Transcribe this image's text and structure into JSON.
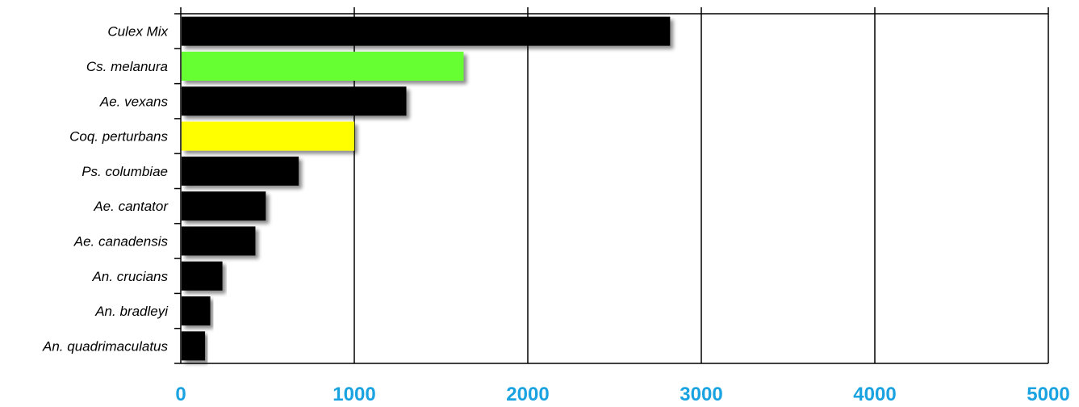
{
  "chart_data": {
    "type": "bar",
    "orientation": "horizontal",
    "categories": [
      "Culex Mix",
      "Cs. melanura",
      "Ae. vexans",
      "Coq. perturbans",
      "Ps. columbiae",
      "Ae. cantator",
      "Ae. canadensis",
      "An. crucians",
      "An. bradleyi",
      "An. quadrimaculatus"
    ],
    "values": [
      2820,
      1630,
      1300,
      1000,
      680,
      490,
      430,
      240,
      170,
      140
    ],
    "bar_colors": [
      "#000000",
      "#66ff33",
      "#000000",
      "#ffff00",
      "#000000",
      "#000000",
      "#000000",
      "#000000",
      "#000000",
      "#000000"
    ],
    "xlim": [
      0,
      5000
    ],
    "x_ticks": [
      0,
      1000,
      2000,
      3000,
      4000,
      5000
    ],
    "x_tick_labels": [
      "0",
      "1000",
      "2000",
      "3000",
      "4000",
      "5000"
    ],
    "tick_label_color": "#1aa3e0",
    "grid": true,
    "title": "",
    "xlabel": "",
    "ylabel": ""
  }
}
